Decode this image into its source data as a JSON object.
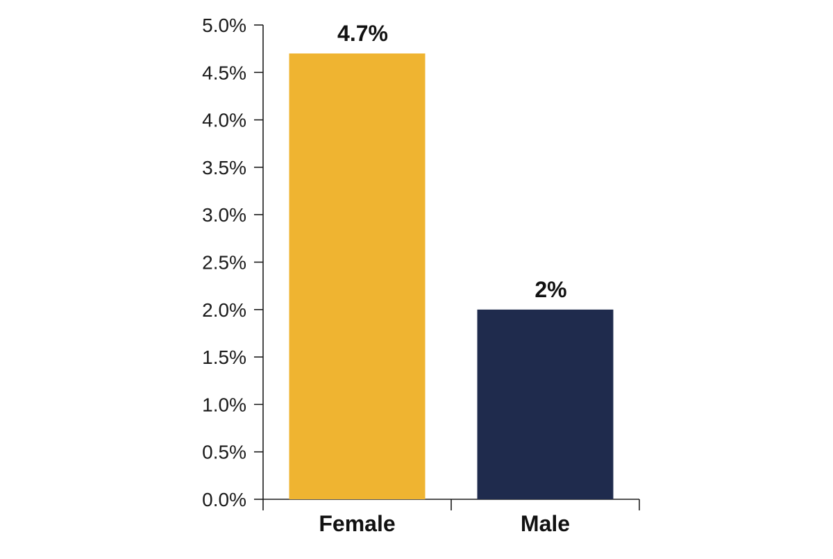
{
  "chart_data": {
    "type": "bar",
    "categories": [
      "Female",
      "Male"
    ],
    "values": [
      4.7,
      2.0
    ],
    "data_labels": [
      "4.7%",
      "2%"
    ],
    "colors": [
      "#EFB431",
      "#1F2B4D"
    ],
    "ylim": [
      0,
      5
    ],
    "yticks": [
      {
        "value": 0.0,
        "label": "0.0%"
      },
      {
        "value": 0.5,
        "label": "0.5%"
      },
      {
        "value": 1.0,
        "label": "1.0%"
      },
      {
        "value": 1.5,
        "label": "1.5%"
      },
      {
        "value": 2.0,
        "label": "2.0%"
      },
      {
        "value": 2.5,
        "label": "2.5%"
      },
      {
        "value": 3.0,
        "label": "3.0%"
      },
      {
        "value": 3.5,
        "label": "3.5%"
      },
      {
        "value": 4.0,
        "label": "4.0%"
      },
      {
        "value": 4.5,
        "label": "4.5%"
      },
      {
        "value": 5.0,
        "label": "5.0%"
      }
    ],
    "grid": false,
    "legend": "none"
  }
}
